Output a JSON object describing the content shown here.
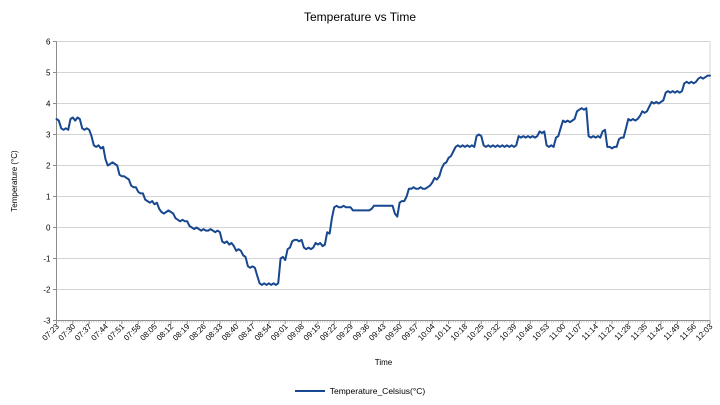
{
  "title": "Temperature vs Time",
  "x_axis": {
    "title": "Time",
    "tick_labels": [
      "07:23",
      "07:30",
      "07:37",
      "07:44",
      "07:51",
      "07:58",
      "08:05",
      "08:12",
      "08:19",
      "08:26",
      "08:33",
      "08:40",
      "08:47",
      "08:54",
      "09:01",
      "09:08",
      "09:15",
      "09:22",
      "09:29",
      "09:36",
      "09:43",
      "09:50",
      "09:57",
      "10:04",
      "10:11",
      "10:18",
      "10:25",
      "10:32",
      "10:39",
      "10:46",
      "10:53",
      "11:00",
      "11:07",
      "11:14",
      "11:21",
      "11:28",
      "11:35",
      "11:42",
      "11:49",
      "11:56",
      "12:03"
    ]
  },
  "y_axis": {
    "title": "Temperature (°C)",
    "tick_labels": [
      "6",
      "5",
      "4",
      "3",
      "2",
      "1",
      "0",
      "-1",
      "-2",
      "-3"
    ],
    "min": -3,
    "max": 6,
    "step": 1
  },
  "legend": {
    "label": "Temperature_Celsius(°C)"
  },
  "colors": {
    "line": "#17478f",
    "grid": "#d3d3d3",
    "axis": "#8c8c8c",
    "minor_tick": "#a6a6a6",
    "text": "#000000",
    "background": "#ffffff"
  },
  "chart_data": {
    "type": "line",
    "title": "Temperature vs Time",
    "xlabel": "Time",
    "ylabel": "Temperature (°C)",
    "ylim": [
      -3,
      6
    ],
    "y_step": 1,
    "grid": "horizontal",
    "legend_position": "bottom",
    "x_start": "07:23",
    "x_end": "12:03",
    "x_step_minutes": 1,
    "x_tick_step_minutes": 7,
    "series": [
      {
        "name": "Temperature_Celsius(°C)",
        "color": "#17478f",
        "values": [
          3.5,
          3.45,
          3.2,
          3.15,
          3.2,
          3.15,
          3.5,
          3.55,
          3.45,
          3.55,
          3.5,
          3.2,
          3.15,
          3.2,
          3.15,
          2.95,
          2.65,
          2.6,
          2.65,
          2.55,
          2.6,
          2.2,
          2.0,
          2.05,
          2.1,
          2.05,
          2.0,
          1.7,
          1.65,
          1.65,
          1.6,
          1.55,
          1.35,
          1.3,
          1.3,
          1.15,
          1.1,
          1.1,
          0.9,
          0.85,
          0.8,
          0.85,
          0.75,
          0.8,
          0.6,
          0.5,
          0.45,
          0.5,
          0.55,
          0.5,
          0.45,
          0.3,
          0.25,
          0.2,
          0.25,
          0.2,
          0.2,
          0.05,
          0.0,
          -0.05,
          0.0,
          -0.05,
          -0.1,
          -0.05,
          -0.1,
          -0.1,
          -0.05,
          -0.1,
          -0.15,
          -0.1,
          -0.15,
          -0.45,
          -0.5,
          -0.45,
          -0.55,
          -0.5,
          -0.6,
          -0.75,
          -0.7,
          -0.75,
          -0.9,
          -0.95,
          -1.25,
          -1.3,
          -1.25,
          -1.3,
          -1.55,
          -1.8,
          -1.85,
          -1.8,
          -1.85,
          -1.8,
          -1.85,
          -1.8,
          -1.85,
          -1.8,
          -1.0,
          -0.95,
          -1.05,
          -0.7,
          -0.65,
          -0.45,
          -0.4,
          -0.4,
          -0.45,
          -0.4,
          -0.65,
          -0.7,
          -0.65,
          -0.7,
          -0.65,
          -0.5,
          -0.55,
          -0.5,
          -0.6,
          -0.55,
          -0.15,
          -0.2,
          0.3,
          0.65,
          0.7,
          0.65,
          0.65,
          0.7,
          0.65,
          0.65,
          0.65,
          0.55,
          0.55,
          0.55,
          0.55,
          0.55,
          0.55,
          0.55,
          0.55,
          0.6,
          0.7,
          0.7,
          0.7,
          0.7,
          0.7,
          0.7,
          0.7,
          0.7,
          0.7,
          0.45,
          0.35,
          0.8,
          0.85,
          0.85,
          1.0,
          1.25,
          1.25,
          1.3,
          1.25,
          1.25,
          1.3,
          1.25,
          1.25,
          1.3,
          1.35,
          1.45,
          1.6,
          1.55,
          1.65,
          1.9,
          2.05,
          2.1,
          2.25,
          2.3,
          2.45,
          2.6,
          2.65,
          2.6,
          2.65,
          2.6,
          2.65,
          2.6,
          2.65,
          2.6,
          2.95,
          3.0,
          2.95,
          2.65,
          2.6,
          2.65,
          2.6,
          2.65,
          2.6,
          2.65,
          2.6,
          2.65,
          2.6,
          2.65,
          2.6,
          2.65,
          2.6,
          2.65,
          2.95,
          2.9,
          2.95,
          2.9,
          2.95,
          2.9,
          2.95,
          2.9,
          2.95,
          3.1,
          3.05,
          3.1,
          2.65,
          2.6,
          2.65,
          2.6,
          2.9,
          2.95,
          3.2,
          3.45,
          3.4,
          3.45,
          3.4,
          3.45,
          3.5,
          3.75,
          3.8,
          3.85,
          3.8,
          3.85,
          2.95,
          2.9,
          2.95,
          2.9,
          2.95,
          2.9,
          3.1,
          3.15,
          2.6,
          2.6,
          2.55,
          2.6,
          2.6,
          2.85,
          2.9,
          2.9,
          3.2,
          3.5,
          3.45,
          3.5,
          3.45,
          3.5,
          3.6,
          3.75,
          3.7,
          3.75,
          3.9,
          4.05,
          4.0,
          4.05,
          4.0,
          4.05,
          4.1,
          4.35,
          4.4,
          4.35,
          4.4,
          4.35,
          4.4,
          4.35,
          4.4,
          4.65,
          4.7,
          4.65,
          4.7,
          4.65,
          4.7,
          4.8,
          4.85,
          4.8,
          4.85,
          4.9,
          4.9
        ]
      }
    ]
  }
}
